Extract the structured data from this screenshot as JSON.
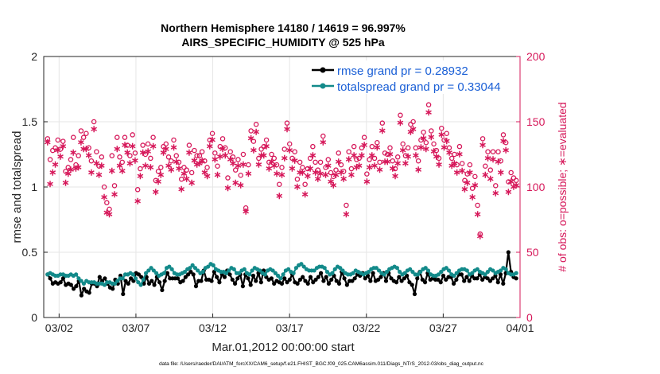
{
  "chart_data": {
    "type": "line",
    "title": "Northern Hemisphere 14180 / 14619 = 96.997%",
    "subtitle": "AIRS_SPECIFIC_HUMIDITY @ 525 hPa",
    "xlabel": "Mar.01,2012 00:00:00 start",
    "ylabel_left": "rmse and totalspread",
    "ylabel_right": "# of obs: o=possible; ∗=evaluated",
    "footer": "data file: /Users/raeder/DAI/ATM_forcXX/CAM6_setup/f.e21.FHIST_BGC.f09_025.CAM6assim.011/Diags_NTrS_2012-03/obs_diag_output.nc",
    "xlim": [
      0.5,
      31.5
    ],
    "ylim_left": [
      0,
      2
    ],
    "ylim_right": [
      0,
      200
    ],
    "x_ticks": [
      {
        "x": 1.5,
        "label": "03/02"
      },
      {
        "x": 6.5,
        "label": "03/07"
      },
      {
        "x": 11.5,
        "label": "03/12"
      },
      {
        "x": 16.5,
        "label": "03/17"
      },
      {
        "x": 21.5,
        "label": "03/22"
      },
      {
        "x": 26.5,
        "label": "03/27"
      },
      {
        "x": 31.5,
        "label": "04/01"
      }
    ],
    "y_left_ticks": [
      "0",
      "0.5",
      "1",
      "1.5",
      "2"
    ],
    "y_right_ticks": [
      "0",
      "50",
      "100",
      "150",
      "200"
    ],
    "grid": true,
    "legend_position": "top-right",
    "colors": {
      "rmse": "#000000",
      "spread": "#138a8a",
      "obs": "#d6185a"
    },
    "series": [
      {
        "name": "rmse grand pr = 0.28932",
        "values": [
          0.33,
          0.3,
          0.26,
          0.27,
          0.26,
          0.27,
          0.3,
          0.25,
          0.26,
          0.25,
          0.22,
          0.24,
          0.28,
          0.17,
          0.22,
          0.2,
          0.19,
          0.26,
          0.26,
          0.24,
          0.31,
          0.28,
          0.3,
          0.26,
          0.23,
          0.22,
          0.29,
          0.26,
          0.32,
          0.18,
          0.28,
          0.26,
          0.3,
          0.28,
          0.34,
          0.33,
          0.31,
          0.26,
          0.31,
          0.26,
          0.28,
          0.25,
          0.31,
          0.27,
          0.21,
          0.28,
          0.34,
          0.3,
          0.3,
          0.3,
          0.3,
          0.27,
          0.28,
          0.31,
          0.33,
          0.35,
          0.33,
          0.24,
          0.28,
          0.28,
          0.36,
          0.29,
          0.29,
          0.28,
          0.35,
          0.31,
          0.27,
          0.33,
          0.31,
          0.36,
          0.33,
          0.29,
          0.26,
          0.3,
          0.33,
          0.24,
          0.33,
          0.3,
          0.25,
          0.32,
          0.28,
          0.34,
          0.27,
          0.36,
          0.31,
          0.29,
          0.3,
          0.26,
          0.28,
          0.27,
          0.26,
          0.3,
          0.27,
          0.29,
          0.33,
          0.27,
          0.26,
          0.29,
          0.31,
          0.28,
          0.26,
          0.31,
          0.27,
          0.29,
          0.31,
          0.34,
          0.28,
          0.31,
          0.26,
          0.29,
          0.32,
          0.28,
          0.26,
          0.35,
          0.3,
          0.25,
          0.28,
          0.28,
          0.3,
          0.33,
          0.32,
          0.34,
          0.3,
          0.32,
          0.28,
          0.34,
          0.28,
          0.29,
          0.31,
          0.34,
          0.28,
          0.34,
          0.3,
          0.28,
          0.27,
          0.31,
          0.28,
          0.3,
          0.32,
          0.27,
          0.25,
          0.18,
          0.3,
          0.35,
          0.29,
          0.27,
          0.34,
          0.29,
          0.3,
          0.29,
          0.29,
          0.27,
          0.32,
          0.29,
          0.31,
          0.31,
          0.26,
          0.29,
          0.33,
          0.33,
          0.28,
          0.31,
          0.28,
          0.32,
          0.3,
          0.3,
          0.33,
          0.29,
          0.31,
          0.3,
          0.28,
          0.3,
          0.32,
          0.27,
          0.33,
          0.26,
          0.34,
          0.5,
          0.35,
          0.31,
          0.3
        ]
      },
      {
        "name": "totalspread grand pr = 0.33044",
        "values": [
          0.33,
          0.34,
          0.33,
          0.32,
          0.32,
          0.33,
          0.33,
          0.32,
          0.32,
          0.33,
          0.32,
          0.33,
          0.3,
          0.28,
          0.26,
          0.28,
          0.27,
          0.27,
          0.27,
          0.26,
          0.26,
          0.26,
          0.25,
          0.27,
          0.27,
          0.26,
          0.26,
          0.28,
          0.3,
          0.3,
          0.33,
          0.33,
          0.34,
          0.33,
          0.3,
          0.27,
          0.25,
          0.29,
          0.34,
          0.36,
          0.38,
          0.36,
          0.34,
          0.32,
          0.33,
          0.34,
          0.38,
          0.39,
          0.37,
          0.34,
          0.33,
          0.33,
          0.34,
          0.35,
          0.37,
          0.38,
          0.4,
          0.38,
          0.36,
          0.34,
          0.35,
          0.38,
          0.39,
          0.41,
          0.4,
          0.37,
          0.36,
          0.35,
          0.35,
          0.34,
          0.36,
          0.38,
          0.37,
          0.34,
          0.34,
          0.36,
          0.37,
          0.34,
          0.33,
          0.36,
          0.38,
          0.37,
          0.36,
          0.34,
          0.33,
          0.36,
          0.37,
          0.36,
          0.34,
          0.32,
          0.3,
          0.33,
          0.36,
          0.37,
          0.35,
          0.34,
          0.38,
          0.4,
          0.41,
          0.39,
          0.37,
          0.36,
          0.36,
          0.36,
          0.38,
          0.39,
          0.39,
          0.38,
          0.35,
          0.33,
          0.34,
          0.37,
          0.39,
          0.38,
          0.36,
          0.34,
          0.33,
          0.33,
          0.34,
          0.36,
          0.35,
          0.34,
          0.33,
          0.34,
          0.35,
          0.37,
          0.38,
          0.38,
          0.36,
          0.34,
          0.33,
          0.35,
          0.37,
          0.38,
          0.39,
          0.38,
          0.35,
          0.33,
          0.34,
          0.36,
          0.37,
          0.35,
          0.33,
          0.33,
          0.35,
          0.37,
          0.38,
          0.36,
          0.33,
          0.32,
          0.32,
          0.33,
          0.35,
          0.37,
          0.38,
          0.36,
          0.33,
          0.32,
          0.34,
          0.36,
          0.37,
          0.37,
          0.36,
          0.33,
          0.34,
          0.36,
          0.37,
          0.35,
          0.34,
          0.33,
          0.35,
          0.37,
          0.36,
          0.34,
          0.35,
          0.36,
          0.38,
          0.37,
          0.34,
          0.33,
          0.33,
          0.34
        ]
      },
      {
        "name": "o=possible",
        "values": [
          137,
          121,
          128,
          130,
          136,
          129,
          135,
          112,
          115,
          121,
          138,
          117,
          124,
          143,
          138,
          141,
          130,
          120,
          150,
          127,
          116,
          123,
          100,
          88,
          83,
          124,
          101,
          138,
          123,
          119,
          138,
          132,
          124,
          140,
          126,
          98,
          114,
          132,
          125,
          133,
          122,
          138,
          105,
          112,
          115,
          131,
          133,
          123,
          120,
          136,
          124,
          119,
          106,
          115,
          113,
          132,
          111,
          128,
          124,
          124,
          127,
          120,
          115,
          136,
          141,
          126,
          116,
          131,
          137,
          130,
          107,
          127,
          123,
          113,
          121,
          109,
          125,
          84,
          117,
          143,
          135,
          148,
          122,
          129,
          131,
          136,
          119,
          125,
          122,
          117,
          102,
          115,
          129,
          149,
          133,
          122,
          127,
          106,
          119,
          115,
          102,
          114,
          122,
          131,
          119,
          113,
          119,
          139,
          115,
          121,
          111,
          108,
          113,
          126,
          117,
          112,
          86,
          127,
          114,
          131,
          121,
          122,
          130,
          138,
          110,
          121,
          131,
          122,
          134,
          119,
          149,
          126,
          125,
          130,
          120,
          114,
          123,
          155,
          133,
          124,
          130,
          148,
          150,
          130,
          120,
          136,
          142,
          134,
          163,
          143,
          133,
          128,
          122,
          145,
          136,
          141,
          130,
          122,
          125,
          117,
          131,
          118,
          105,
          110,
          117,
          99,
          108,
          86,
          64,
          137,
          116,
          127,
          113,
          127,
          101,
          127,
          120,
          140,
          134,
          104,
          111,
          107,
          105
        ]
      },
      {
        "name": "∗=evaluated",
        "values": [
          135,
          103,
          112,
          118,
          129,
          124,
          132,
          104,
          111,
          114,
          127,
          115,
          116,
          135,
          130,
          130,
          125,
          112,
          145,
          119,
          110,
          117,
          93,
          81,
          80,
          113,
          95,
          130,
          117,
          113,
          133,
          127,
          119,
          132,
          121,
          90,
          109,
          127,
          117,
          128,
          116,
          132,
          97,
          105,
          110,
          127,
          130,
          117,
          114,
          131,
          120,
          115,
          99,
          111,
          107,
          127,
          104,
          121,
          118,
          119,
          121,
          112,
          109,
          132,
          137,
          122,
          110,
          124,
          130,
          125,
          100,
          122,
          119,
          104,
          117,
          102,
          118,
          82,
          111,
          138,
          129,
          143,
          118,
          125,
          125,
          132,
          115,
          120,
          117,
          111,
          94,
          110,
          123,
          145,
          129,
          115,
          121,
          101,
          112,
          112,
          95,
          109,
          115,
          125,
          112,
          107,
          111,
          135,
          110,
          117,
          105,
          102,
          110,
          120,
          112,
          107,
          80,
          122,
          110,
          125,
          116,
          117,
          125,
          133,
          105,
          116,
          125,
          117,
          131,
          114,
          144,
          120,
          120,
          126,
          115,
          109,
          119,
          150,
          129,
          119,
          124,
          143,
          145,
          125,
          114,
          131,
          138,
          130,
          158,
          139,
          128,
          124,
          118,
          141,
          131,
          136,
          127,
          117,
          119,
          112,
          126,
          113,
          99,
          104,
          112,
          93,
          102,
          80,
          63,
          133,
          110,
          123,
          107,
          122,
          96,
          120,
          112,
          136,
          129,
          97,
          105,
          101,
          102
        ]
      }
    ]
  }
}
